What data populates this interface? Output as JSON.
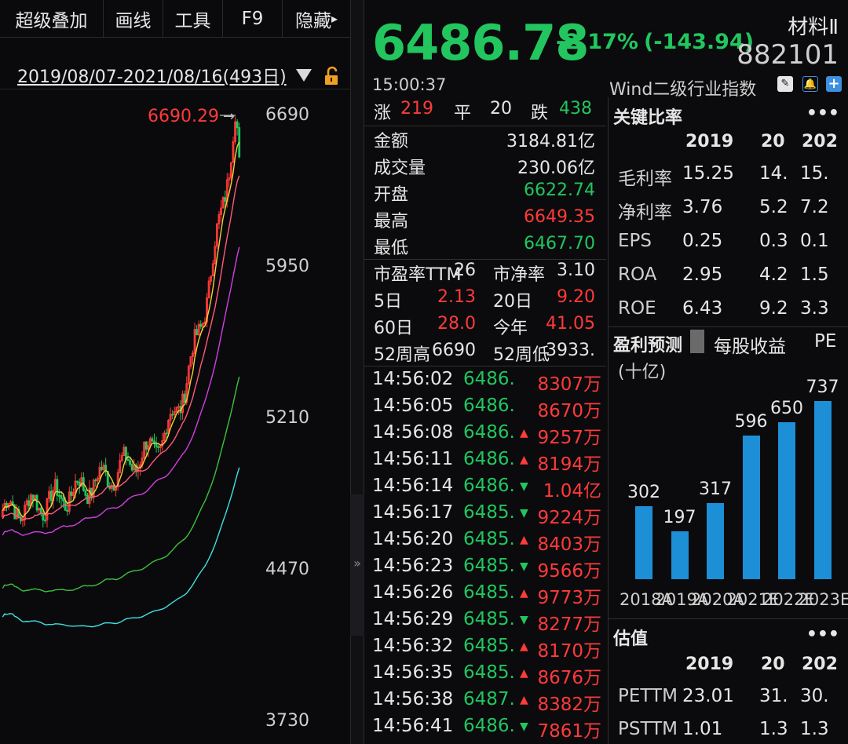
{
  "toolbar": {
    "items": [
      "超级叠加",
      "画线",
      "工具",
      "F9",
      "隐藏"
    ],
    "more_arrow": "▸"
  },
  "chart": {
    "date_range": "2019/08/07-2021/08/16(493日)",
    "dropdown_icon": "triangle-down",
    "lock_icon": "lock",
    "high_marker": "6690.29",
    "high_arrow": "→",
    "y_ticks": [
      "6690",
      "5950",
      "5210",
      "4470",
      "3730"
    ],
    "colors": {
      "up": "#ff3a3a",
      "down": "#22c55e",
      "ma5": "#f0d23a",
      "ma10": "#ff5a7a",
      "ma20": "#d040e0",
      "ma60": "#3ec03e",
      "ma120": "#40e0e0"
    }
  },
  "quote": {
    "price": "6486.78",
    "change_pct": "-2.17%",
    "change_abs": "(-143.94)",
    "name": "材料Ⅱ",
    "code": "882101",
    "time": "15:00:37",
    "index_name": "Wind二级行业指数",
    "icons": [
      "edit-icon",
      "bell-icon",
      "plus-icon"
    ]
  },
  "breadth": {
    "up_label": "涨",
    "up": "219",
    "flat_label": "平",
    "flat": "20",
    "down_label": "跌",
    "down": "438"
  },
  "stats": [
    {
      "label": "金额",
      "value": "3184.81亿",
      "color": "white"
    },
    {
      "label": "成交量",
      "value": "230.06亿",
      "color": "white"
    },
    {
      "label": "开盘",
      "value": "6622.74",
      "color": "green"
    },
    {
      "label": "最高",
      "value": "6649.35",
      "color": "red"
    },
    {
      "label": "最低",
      "value": "6467.70",
      "color": "green"
    }
  ],
  "metrics": [
    {
      "l1": "市盈率TTM",
      "v1": "26",
      "c1": "white",
      "l2": "市净率",
      "v2": "3.10",
      "c2": "white"
    },
    {
      "l1": "5日",
      "v1": "2.13",
      "c1": "red",
      "l2": "20日",
      "v2": "9.20",
      "c2": "red"
    },
    {
      "l1": "60日",
      "v1": "28.0",
      "c1": "red",
      "l2": "今年",
      "v2": "41.05",
      "c2": "red"
    },
    {
      "l1": "52周高",
      "v1": "6690",
      "c1": "white",
      "l2": "52周低",
      "v2": "3933.",
      "c2": "white"
    }
  ],
  "ticks": [
    {
      "time": "14:56:02",
      "price": "6486.",
      "dir": "",
      "vol": "8307万"
    },
    {
      "time": "14:56:05",
      "price": "6486.",
      "dir": "",
      "vol": "8670万"
    },
    {
      "time": "14:56:08",
      "price": "6486.",
      "dir": "up",
      "vol": "9257万"
    },
    {
      "time": "14:56:11",
      "price": "6486.",
      "dir": "up",
      "vol": "8194万"
    },
    {
      "time": "14:56:14",
      "price": "6486.",
      "dir": "down",
      "vol": "1.04亿"
    },
    {
      "time": "14:56:17",
      "price": "6485.",
      "dir": "down",
      "vol": "9224万"
    },
    {
      "time": "14:56:20",
      "price": "6485.",
      "dir": "up",
      "vol": "8403万"
    },
    {
      "time": "14:56:23",
      "price": "6485.",
      "dir": "down",
      "vol": "9566万"
    },
    {
      "time": "14:56:26",
      "price": "6485.",
      "dir": "up",
      "vol": "9773万"
    },
    {
      "time": "14:56:29",
      "price": "6485.",
      "dir": "down",
      "vol": "8277万"
    },
    {
      "time": "14:56:32",
      "price": "6485.",
      "dir": "up",
      "vol": "8170万"
    },
    {
      "time": "14:56:35",
      "price": "6485.",
      "dir": "up",
      "vol": "8676万"
    },
    {
      "time": "14:56:38",
      "price": "6487.",
      "dir": "up",
      "vol": "8382万"
    },
    {
      "time": "14:56:41",
      "price": "6486.",
      "dir": "down",
      "vol": "7861万"
    }
  ],
  "key_ratios": {
    "title": "关键比率",
    "more": "•••",
    "cols": [
      "2019",
      "20",
      "202"
    ],
    "rows": [
      {
        "label": "毛利率",
        "vals": [
          "15.25",
          "14.",
          "15."
        ]
      },
      {
        "label": "净利率",
        "vals": [
          "3.76",
          "5.2",
          "7.2"
        ]
      },
      {
        "label": "EPS",
        "vals": [
          "0.25",
          "0.3",
          "0.1"
        ]
      },
      {
        "label": "ROA",
        "vals": [
          "2.95",
          "4.2",
          "1.5"
        ]
      },
      {
        "label": "ROE",
        "vals": [
          "6.43",
          "9.2",
          "3.3"
        ]
      }
    ]
  },
  "forecast": {
    "tabs": [
      "盈利预测",
      "每股收益",
      "PE"
    ],
    "unit": "(十亿)"
  },
  "chart_data": {
    "type": "bar",
    "categories": [
      "2018A",
      "2019A",
      "2020A",
      "2021E",
      "2022E",
      "2023E"
    ],
    "axis_labels": [
      "2018A",
      "2019A",
      "2020A",
      "2021E",
      "2022E",
      "2023E"
    ],
    "values": [
      302,
      197,
      317,
      596,
      650,
      737
    ],
    "value_labels": [
      "302",
      "197",
      "317",
      "596",
      "650",
      "737"
    ],
    "ylim": [
      0,
      800
    ],
    "color": "#1d8fd6"
  },
  "valuation": {
    "title": "估值",
    "more": "•••",
    "cols": [
      "2019",
      "20",
      "202"
    ],
    "rows": [
      {
        "label": "PETTM",
        "vals": [
          "23.01",
          "31.",
          "30."
        ]
      },
      {
        "label": "PSTTM",
        "vals": [
          "1.01",
          "1.3",
          "1.3"
        ]
      }
    ]
  }
}
